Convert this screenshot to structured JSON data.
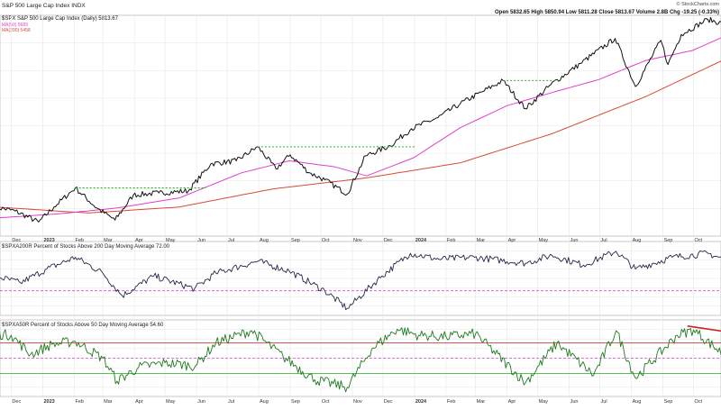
{
  "header": {
    "title": "S&P 500 Large Cap Index INDX",
    "copyright": "© StockCharts.com",
    "ohlc_line": "Open 5832.65  High 5850.94  Low 5811.28  Close 5813.67  Volume 2.8B  Chg -19.25 (-0.33%)",
    "legend_price": "$SPX S&P 500 Large Cap Index (Daily) 5813.67",
    "legend_ma50": "MA(50) 5689",
    "legend_ma200": "MA(200) 5458"
  },
  "colors": {
    "price": "#111111",
    "ma50": "#e040c8",
    "ma200": "#d84a3a",
    "resistance": "#1db41d",
    "breadth200": "#26264a",
    "breadth50": "#1e7a1e",
    "level_red": "#cc2222",
    "level_magenta": "#e040e0",
    "level_green": "#22aa22",
    "grid": "#e6e6e6"
  },
  "x_axis": {
    "ticks": [
      "Dec",
      "2023",
      "Feb",
      "Mar",
      "Apr",
      "May",
      "Jun",
      "Jul",
      "Aug",
      "Sep",
      "Oct",
      "Nov",
      "Dec",
      "2024",
      "Feb",
      "Mar",
      "Apr",
      "May",
      "Jun",
      "Jul",
      "Aug",
      "Sep",
      "Oct"
    ]
  },
  "chart_data": [
    {
      "type": "line",
      "panel": "price",
      "title": "$SPX S&P 500 Large Cap Index (Daily) 5813.67",
      "x_range": [
        "2022-11",
        "2024-10"
      ],
      "ylim": [
        3700,
        5900
      ],
      "series": [
        {
          "name": "$SPX S&P 500 Large Cap Index (Daily) 5813.67",
          "x": [
            "2022-11-15",
            "2022-12-05",
            "2022-12-28",
            "2023-01-12",
            "2023-02-02",
            "2023-02-23",
            "2023-03-13",
            "2023-03-31",
            "2023-04-25",
            "2023-05-24",
            "2023-06-15",
            "2023-07-10",
            "2023-07-31",
            "2023-08-18",
            "2023-09-01",
            "2023-09-20",
            "2023-10-05",
            "2023-10-27",
            "2023-11-14",
            "2023-12-08",
            "2023-12-29",
            "2024-01-24",
            "2024-02-15",
            "2024-03-08",
            "2024-03-28",
            "2024-04-19",
            "2024-05-14",
            "2024-06-12",
            "2024-07-16",
            "2024-08-05",
            "2024-08-30",
            "2024-09-06",
            "2024-09-19",
            "2024-10-15",
            "2024-10-31"
          ],
          "y": [
            3990,
            3950,
            3840,
            3990,
            4180,
            3980,
            3860,
            4110,
            4130,
            4150,
            4420,
            4450,
            4590,
            4370,
            4510,
            4330,
            4260,
            4120,
            4500,
            4600,
            4770,
            4880,
            5020,
            5140,
            5250,
            4970,
            5210,
            5420,
            5670,
            5190,
            5650,
            5410,
            5710,
            5860,
            5813
          ]
        },
        {
          "name": "MA(50) 5689",
          "x": [
            "2022-11-15",
            "2023-01-15",
            "2023-03-15",
            "2023-05-15",
            "2023-07-15",
            "2023-08-31",
            "2023-10-15",
            "2023-11-15",
            "2023-12-31",
            "2024-02-15",
            "2024-04-01",
            "2024-05-15",
            "2024-06-30",
            "2024-08-15",
            "2024-09-30",
            "2024-10-31"
          ],
          "y": [
            3880,
            3920,
            3980,
            4080,
            4330,
            4450,
            4390,
            4300,
            4480,
            4780,
            5000,
            5130,
            5260,
            5450,
            5550,
            5689
          ]
        },
        {
          "name": "MA(200) 5458",
          "x": [
            "2022-11-15",
            "2023-02-15",
            "2023-05-15",
            "2023-08-15",
            "2023-11-15",
            "2024-02-15",
            "2024-05-15",
            "2024-08-15",
            "2024-10-31"
          ],
          "y": [
            3990,
            3930,
            3990,
            4170,
            4280,
            4430,
            4720,
            5090,
            5458
          ]
        }
      ],
      "annotations": [
        {
          "kind": "horizontal-dashed",
          "y": 4180,
          "x_from": "2023-02-02",
          "x_to": "2023-06-10"
        },
        {
          "kind": "horizontal-dashed",
          "y": 4590,
          "x_from": "2023-07-31",
          "x_to": "2024-01-01"
        },
        {
          "kind": "horizontal-dashed",
          "y": 5250,
          "x_from": "2024-03-28",
          "x_to": "2024-05-20"
        }
      ]
    },
    {
      "type": "line",
      "panel": "breadth200",
      "title": "$SPXA200R Percent of Stocks Above 200 Day Moving Average 72.00",
      "ylim": [
        15,
        90
      ],
      "levels": [
        40
      ],
      "series": [
        {
          "name": "$SPXA200R Percent of Stocks Above 200 Day Moving Average 72.00",
          "x": [
            "2022-11-15",
            "2022-12-10",
            "2023-01-05",
            "2023-02-02",
            "2023-03-01",
            "2023-03-20",
            "2023-04-20",
            "2023-05-30",
            "2023-06-20",
            "2023-07-31",
            "2023-08-31",
            "2023-10-05",
            "2023-10-27",
            "2023-11-30",
            "2023-12-28",
            "2024-01-25",
            "2024-02-29",
            "2024-04-19",
            "2024-05-15",
            "2024-06-15",
            "2024-07-17",
            "2024-08-05",
            "2024-09-10",
            "2024-10-15",
            "2024-10-31"
          ],
          "y": [
            55,
            48,
            62,
            74,
            58,
            35,
            55,
            42,
            58,
            70,
            60,
            40,
            22,
            55,
            78,
            72,
            74,
            68,
            76,
            66,
            80,
            62,
            74,
            78,
            72
          ]
        }
      ]
    },
    {
      "type": "line",
      "panel": "breadth50",
      "title": "$SPXA50R Percent of Stocks Above 50 Day Moving Average 54.60",
      "ylim": [
        0,
        100
      ],
      "levels": [
        70,
        50,
        30
      ],
      "series": [
        {
          "name": "$SPXA50R Percent of Stocks Above 50 Day Moving Average 54.60",
          "x": [
            "2022-11-15",
            "2022-12-01",
            "2022-12-20",
            "2023-01-10",
            "2023-02-02",
            "2023-03-01",
            "2023-03-15",
            "2023-04-05",
            "2023-05-01",
            "2023-05-31",
            "2023-06-20",
            "2023-07-25",
            "2023-08-25",
            "2023-09-25",
            "2023-10-27",
            "2023-11-20",
            "2023-12-15",
            "2024-01-05",
            "2024-02-01",
            "2024-03-01",
            "2024-04-19",
            "2024-05-20",
            "2024-06-25",
            "2024-07-17",
            "2024-08-05",
            "2024-09-15",
            "2024-10-01",
            "2024-10-31"
          ],
          "y": [
            82,
            80,
            55,
            68,
            72,
            50,
            20,
            38,
            44,
            40,
            70,
            86,
            52,
            22,
            12,
            62,
            88,
            80,
            78,
            82,
            18,
            70,
            28,
            86,
            24,
            80,
            87,
            54.6
          ]
        }
      ],
      "annotations": [
        {
          "kind": "trend-line",
          "color": "red",
          "x_from": "2024-09-25",
          "y_from": 92,
          "x_to": "2024-10-31",
          "y_to": 85
        }
      ]
    }
  ]
}
